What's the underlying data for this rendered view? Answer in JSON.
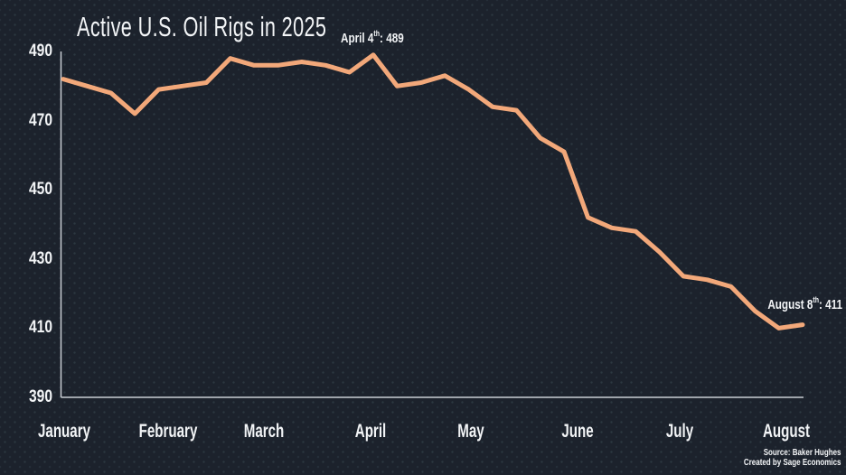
{
  "title": "Active U.S. Oil Rigs in 2025",
  "annotations": {
    "april": {
      "pre": "April 4",
      "sup": "th",
      "post": ": 489"
    },
    "august": {
      "pre": "August 8",
      "sup": "th",
      "post": ": 411"
    }
  },
  "source": {
    "line1": "Source:  Baker Hughes",
    "line2": "Created by Sage Economics"
  },
  "colors": {
    "background": "#1c222c",
    "line": "#f2a87a",
    "axis": "#c9ced4",
    "text": "#f2f4f6"
  },
  "chart_data": {
    "type": "line",
    "title": "Active U.S. Oil Rigs in 2025",
    "series": [
      {
        "name": "Active U.S. oil rigs",
        "frequency": "weekly",
        "values": [
          482,
          480,
          478,
          472,
          479,
          480,
          481,
          488,
          486,
          486,
          487,
          486,
          484,
          489,
          480,
          481,
          483,
          479,
          474,
          473,
          465,
          461,
          442,
          439,
          438,
          432,
          425,
          424,
          422,
          415,
          410,
          411
        ]
      }
    ],
    "x_axis": {
      "labels": [
        "January",
        "February",
        "March",
        "April",
        "May",
        "June",
        "July",
        "August"
      ]
    },
    "y_axis": {
      "ticks": [
        490,
        470,
        450,
        430,
        410,
        390
      ],
      "range": [
        390,
        490
      ]
    },
    "point_annotations": [
      {
        "label": "April 4th: 489",
        "index": 13,
        "value": 489
      },
      {
        "label": "August 8th: 411",
        "index": 31,
        "value": 411
      }
    ],
    "grid": false,
    "legend": "none",
    "line_color": "#f2a87a"
  }
}
